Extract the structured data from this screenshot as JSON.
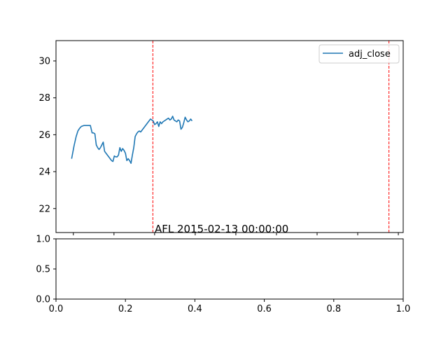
{
  "chart_data": [
    {
      "type": "line",
      "title": "AFL 2015-02-13 00:00:00",
      "legend": {
        "placement": "top-right",
        "entries": [
          "adj_close"
        ]
      },
      "ylim": [
        20.7,
        31.1
      ],
      "xlim": [
        0.0,
        1.0
      ],
      "yticks": [
        {
          "value": 22,
          "label": "22"
        },
        {
          "value": 24,
          "label": "24"
        },
        {
          "value": 26,
          "label": "26"
        },
        {
          "value": 28,
          "label": "28"
        },
        {
          "value": 30,
          "label": "30"
        }
      ],
      "xticks_unlabeled": [
        0.05,
        0.167,
        0.284,
        0.401,
        0.518,
        0.635,
        0.752,
        0.869,
        0.986
      ],
      "vlines": [
        {
          "x": 0.279,
          "color": "#ff0000",
          "style": "dashed"
        },
        {
          "x": 0.959,
          "color": "#ff0000",
          "style": "dashed"
        }
      ],
      "series": [
        {
          "name": "adj_close",
          "color": "#1f77b4",
          "x": [
            0.045,
            0.052,
            0.058,
            0.063,
            0.068,
            0.073,
            0.08,
            0.088,
            0.094,
            0.099,
            0.104,
            0.108,
            0.112,
            0.116,
            0.12,
            0.124,
            0.128,
            0.132,
            0.136,
            0.14,
            0.144,
            0.148,
            0.152,
            0.156,
            0.16,
            0.164,
            0.168,
            0.172,
            0.176,
            0.18,
            0.184,
            0.188,
            0.192,
            0.196,
            0.2,
            0.204,
            0.208,
            0.212,
            0.216,
            0.22,
            0.224,
            0.228,
            0.232,
            0.236,
            0.24,
            0.244,
            0.248,
            0.252,
            0.256,
            0.26,
            0.264,
            0.268,
            0.272,
            0.276,
            0.28,
            0.284,
            0.288,
            0.292,
            0.296,
            0.3,
            0.304,
            0.308,
            0.312,
            0.316,
            0.32,
            0.324,
            0.328,
            0.332,
            0.336,
            0.34,
            0.344,
            0.348,
            0.352,
            0.356,
            0.36,
            0.364,
            0.368,
            0.372,
            0.376,
            0.38,
            0.384,
            0.388,
            0.392
          ],
          "y": [
            24.7,
            25.4,
            25.9,
            26.2,
            26.35,
            26.45,
            26.5,
            26.5,
            26.5,
            26.5,
            26.1,
            26.1,
            26.05,
            25.45,
            25.3,
            25.2,
            25.3,
            25.45,
            25.6,
            25.1,
            25.0,
            24.9,
            24.8,
            24.7,
            24.6,
            24.55,
            24.85,
            24.8,
            24.8,
            24.9,
            25.3,
            25.1,
            25.25,
            25.15,
            25.0,
            24.6,
            24.7,
            24.6,
            24.45,
            24.9,
            25.3,
            25.9,
            26.05,
            26.15,
            26.2,
            26.15,
            26.25,
            26.35,
            26.45,
            26.55,
            26.65,
            26.75,
            26.85,
            26.8,
            26.75,
            26.55,
            26.6,
            26.7,
            26.45,
            26.7,
            26.6,
            26.7,
            26.75,
            26.8,
            26.85,
            26.9,
            26.8,
            26.85,
            27.0,
            26.8,
            26.75,
            26.7,
            26.8,
            26.75,
            26.3,
            26.4,
            26.65,
            26.95,
            26.8,
            26.7,
            26.75,
            26.85,
            26.75
          ]
        }
      ]
    },
    {
      "type": "line",
      "title": "",
      "xlim": [
        0.0,
        1.0
      ],
      "ylim": [
        0.0,
        1.0
      ],
      "xticks": [
        {
          "value": 0.0,
          "label": "0.0"
        },
        {
          "value": 0.2,
          "label": "0.2"
        },
        {
          "value": 0.4,
          "label": "0.4"
        },
        {
          "value": 0.6,
          "label": "0.6"
        },
        {
          "value": 0.8,
          "label": "0.8"
        },
        {
          "value": 1.0,
          "label": "1.0"
        }
      ],
      "yticks": [
        {
          "value": 0.0,
          "label": "0.0"
        },
        {
          "value": 0.5,
          "label": "0.5"
        },
        {
          "value": 1.0,
          "label": "1.0"
        }
      ],
      "series": []
    }
  ]
}
